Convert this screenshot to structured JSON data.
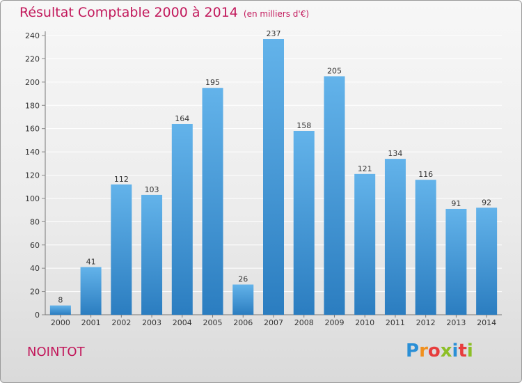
{
  "header": {
    "title": "Résultat Comptable 2000 à 2014",
    "subtitle": "(en milliers d'€)"
  },
  "footer": {
    "commune": "NOINTOT",
    "logo_letters": [
      "P",
      "r",
      "o",
      "x",
      "i",
      "t",
      "i"
    ],
    "logo_colors": [
      "#2a8fd6",
      "#f0901e",
      "#e73d3d",
      "#8cbf26",
      "#2a8fd6",
      "#e73d3d",
      "#8cbf26"
    ]
  },
  "colors": {
    "bar_top": "#63b3ea",
    "bar_bottom": "#2b7dc0",
    "title": "#c2185b",
    "grid": "#ffffff"
  },
  "chart_data": {
    "type": "bar",
    "categories": [
      "2000",
      "2001",
      "2002",
      "2003",
      "2004",
      "2005",
      "2006",
      "2007",
      "2008",
      "2009",
      "2010",
      "2011",
      "2012",
      "2013",
      "2014"
    ],
    "values": [
      8,
      41,
      112,
      103,
      164,
      195,
      26,
      237,
      158,
      205,
      121,
      134,
      116,
      91,
      92
    ],
    "ylim": [
      0,
      240
    ],
    "yticks": [
      0,
      20,
      40,
      60,
      80,
      100,
      120,
      140,
      160,
      180,
      200,
      220,
      240
    ],
    "grid": true,
    "xlabel": "",
    "ylabel": ""
  }
}
